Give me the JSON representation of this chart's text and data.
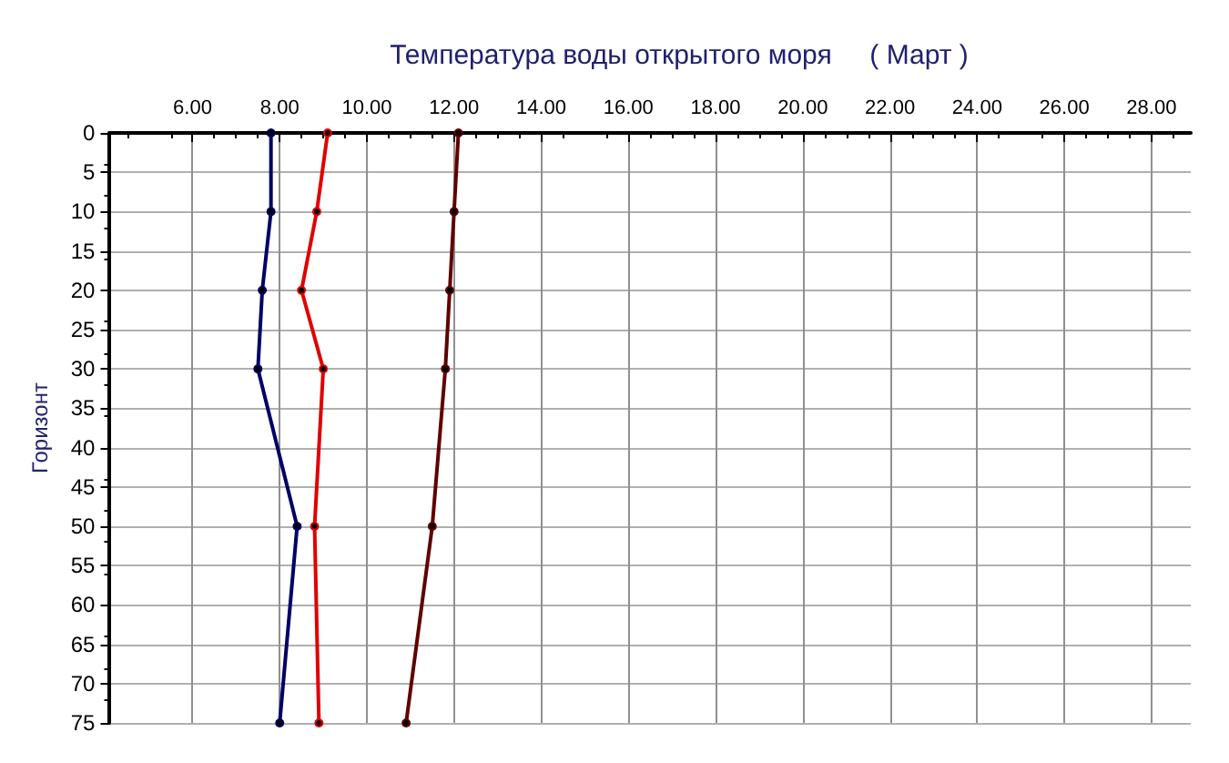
{
  "chart_data": {
    "type": "line",
    "title": "Температура воды открытого моря     ( Март )",
    "ylabel": "Горизонт",
    "xlim": [
      4.1,
      28.9
    ],
    "xticks": [
      {
        "value": 6,
        "label": "6.00"
      },
      {
        "value": 8,
        "label": "8.00"
      },
      {
        "value": 10,
        "label": "10.00"
      },
      {
        "value": 12,
        "label": "12.00"
      },
      {
        "value": 14,
        "label": "14.00"
      },
      {
        "value": 16,
        "label": "16.00"
      },
      {
        "value": 18,
        "label": "18.00"
      },
      {
        "value": 20,
        "label": "20.00"
      },
      {
        "value": 22,
        "label": "22.00"
      },
      {
        "value": 24,
        "label": "24.00"
      },
      {
        "value": 26,
        "label": "26.00"
      },
      {
        "value": 28,
        "label": "28.00"
      }
    ],
    "ylim": [
      75,
      0
    ],
    "yticks": [
      0,
      5,
      10,
      15,
      20,
      25,
      30,
      35,
      40,
      45,
      50,
      55,
      60,
      65,
      70,
      75
    ],
    "grid": true,
    "marker": "circle",
    "line_style": "solid",
    "series": [
      {
        "color": "#000066",
        "x": [
          7.8,
          7.8,
          7.6,
          7.5,
          8.4,
          8.0
        ],
        "values": [
          0,
          10,
          20,
          30,
          50,
          75
        ]
      },
      {
        "color": "#e00000",
        "x": [
          9.1,
          8.85,
          8.5,
          9.0,
          8.8,
          8.9
        ],
        "values": [
          0,
          10,
          20,
          30,
          50,
          75
        ]
      },
      {
        "color": "#600000",
        "x": [
          12.1,
          12.0,
          11.9,
          11.8,
          11.5,
          10.9
        ],
        "values": [
          0,
          10,
          20,
          30,
          50,
          75
        ]
      }
    ]
  }
}
